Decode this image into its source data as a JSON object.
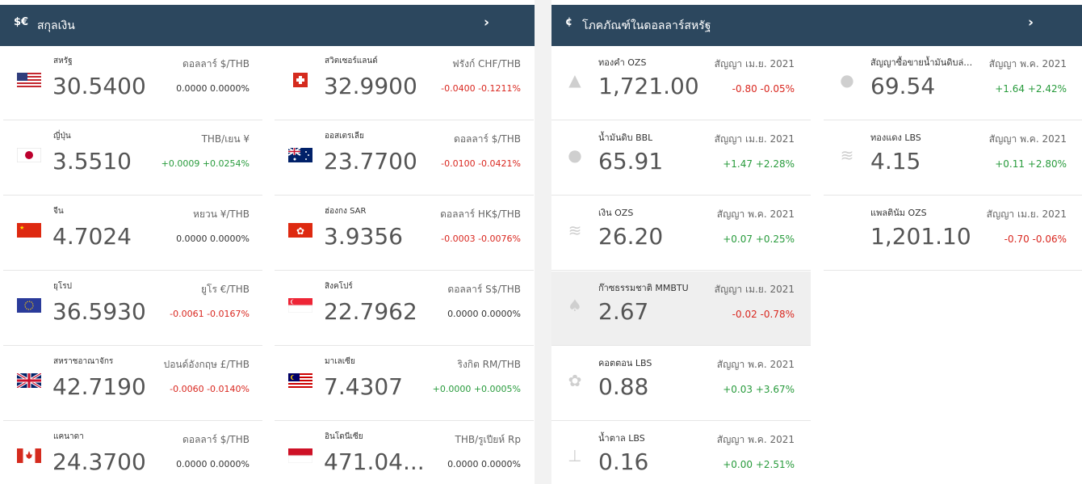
{
  "currency": {
    "icon_text": "$€",
    "title": "สกุลเงิน",
    "arrow": "›",
    "items": [
      {
        "name": "สหรัฐ",
        "value": "30.5400",
        "unit": "ดอลลาร์ $/THB",
        "change": "0.0000 0.0000%",
        "dir": "neutral",
        "flag": "us"
      },
      {
        "name": "สวิตเซอร์แลนด์",
        "value": "32.9900",
        "unit": "ฟรังก์ CHF/THB",
        "change": "-0.0400 -0.1211%",
        "dir": "neg",
        "flag": "ch"
      },
      {
        "name": "ญี่ปุ่น",
        "value": "3.5510",
        "unit": "THB/เยน ¥",
        "change": "+0.0009 +0.0254%",
        "dir": "pos",
        "flag": "jp"
      },
      {
        "name": "ออสเตรเลีย",
        "value": "23.7700",
        "unit": "ดอลลาร์ $/THB",
        "change": "-0.0100 -0.0421%",
        "dir": "neg",
        "flag": "au"
      },
      {
        "name": "จีน",
        "value": "4.7024",
        "unit": "หยวน ¥/THB",
        "change": "0.0000 0.0000%",
        "dir": "neutral",
        "flag": "cn"
      },
      {
        "name": "ฮ่องกง SAR",
        "value": "3.9356",
        "unit": "ดอลลาร์ HK$/THB",
        "change": "-0.0003 -0.0076%",
        "dir": "neg",
        "flag": "hk"
      },
      {
        "name": "ยุโรป",
        "value": "36.5930",
        "unit": "ยูโร €/THB",
        "change": "-0.0061 -0.0167%",
        "dir": "neg",
        "flag": "eu"
      },
      {
        "name": "สิงคโปร์",
        "value": "22.7962",
        "unit": "ดอลลาร์ S$/THB",
        "change": "0.0000 0.0000%",
        "dir": "neutral",
        "flag": "sg"
      },
      {
        "name": "สหราชอาณาจักร",
        "value": "42.7190",
        "unit": "ปอนด์อังกฤษ £/THB",
        "change": "-0.0060 -0.0140%",
        "dir": "neg",
        "flag": "gb"
      },
      {
        "name": "มาเลเซีย",
        "value": "7.4307",
        "unit": "ริงกิต RM/THB",
        "change": "+0.0000 +0.0005%",
        "dir": "pos",
        "flag": "my"
      },
      {
        "name": "แคนาดา",
        "value": "24.3700",
        "unit": "ดอลลาร์ $/THB",
        "change": "0.0000 0.0000%",
        "dir": "neutral",
        "flag": "ca"
      },
      {
        "name": "อินโดนีเซีย",
        "value": "471.04...",
        "unit": "THB/รูเปียห์ Rp",
        "change": "0.0000 0.0000%",
        "dir": "neutral",
        "flag": "id"
      }
    ]
  },
  "commodities": {
    "icon_text": "¢",
    "title": "โภคภัณฑ์ในดอลลาร์สหรัฐ",
    "arrow": "›",
    "left_items": [
      {
        "name": "ทองคำ OZS",
        "value": "1,721.00",
        "contract": "สัญญา เม.ย. 2021",
        "change": "-0.80 -0.05%",
        "dir": "neg",
        "icon": "gold-bars-icon",
        "glyph": "▲",
        "hl": false
      },
      {
        "name": "น้ำมันดิบ BBL",
        "value": "65.91",
        "contract": "สัญญา เม.ย. 2021",
        "change": "+1.47 +2.28%",
        "dir": "pos",
        "icon": "oil-drop-icon",
        "glyph": "●",
        "hl": false
      },
      {
        "name": "เงิน OZS",
        "value": "26.20",
        "contract": "สัญญา พ.ค. 2021",
        "change": "+0.07 +0.25%",
        "dir": "pos",
        "icon": "coin-stack-icon",
        "glyph": "≋",
        "hl": false
      },
      {
        "name": "ก๊าซธรรมชาติ MMBTU",
        "value": "2.67",
        "contract": "สัญญา เม.ย. 2021",
        "change": "-0.02 -0.78%",
        "dir": "neg",
        "icon": "flame-icon",
        "glyph": "♠",
        "hl": true
      },
      {
        "name": "คอตตอน LBS",
        "value": "0.88",
        "contract": "สัญญา พ.ค. 2021",
        "change": "+0.03 +3.67%",
        "dir": "pos",
        "icon": "cotton-icon",
        "glyph": "✿",
        "hl": false
      },
      {
        "name": "น้ำตาล LBS",
        "value": "0.16",
        "contract": "สัญญา พ.ค. 2021",
        "change": "+0.00 +2.51%",
        "dir": "pos",
        "icon": "sugar-icon",
        "glyph": "⊥",
        "hl": false
      }
    ],
    "right_items": [
      {
        "name": "สัญญาซื้อขายน้ำมันดิบล่วง...",
        "value": "69.54",
        "contract": "สัญญา พ.ค. 2021",
        "change": "+1.64 +2.42%",
        "dir": "pos",
        "icon": "oil-drop-icon",
        "glyph": "●",
        "hl": false
      },
      {
        "name": "ทองแดง LBS",
        "value": "4.15",
        "contract": "สัญญา พ.ค. 2021",
        "change": "+0.11 +2.80%",
        "dir": "pos",
        "icon": "coin-stack-icon",
        "glyph": "≋",
        "hl": false
      },
      {
        "name": "แพลตินัม OZS",
        "value": "1,201.10",
        "contract": "สัญญา เม.ย. 2021",
        "change": "-0.70 -0.06%",
        "dir": "neg",
        "icon": "blank-icon",
        "glyph": "",
        "hl": false
      }
    ]
  }
}
